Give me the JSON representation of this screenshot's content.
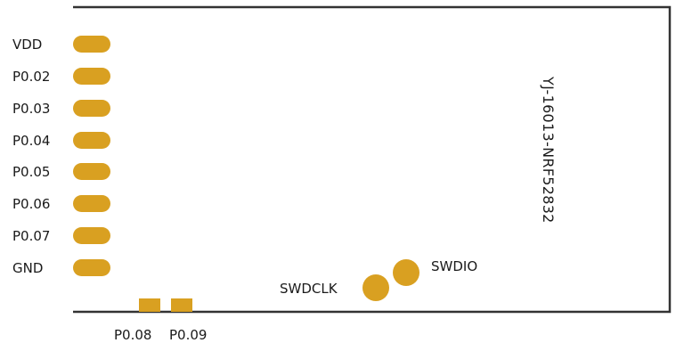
{
  "module": {
    "name": "YJ-16013-NRF52832"
  },
  "colors": {
    "pad": "#D9A021",
    "outline": "#333333",
    "text": "#1a1a1a"
  },
  "left_pins": [
    {
      "label": "VDD"
    },
    {
      "label": "P0.02"
    },
    {
      "label": "P0.03"
    },
    {
      "label": "P0.04"
    },
    {
      "label": "P0.05"
    },
    {
      "label": "P0.06"
    },
    {
      "label": "P0.07"
    },
    {
      "label": "GND"
    }
  ],
  "bottom_pins": [
    {
      "label": "P0.08"
    },
    {
      "label": "P0.09"
    }
  ],
  "debug_pads": [
    {
      "label": "SWDCLK"
    },
    {
      "label": "SWDIO"
    }
  ]
}
